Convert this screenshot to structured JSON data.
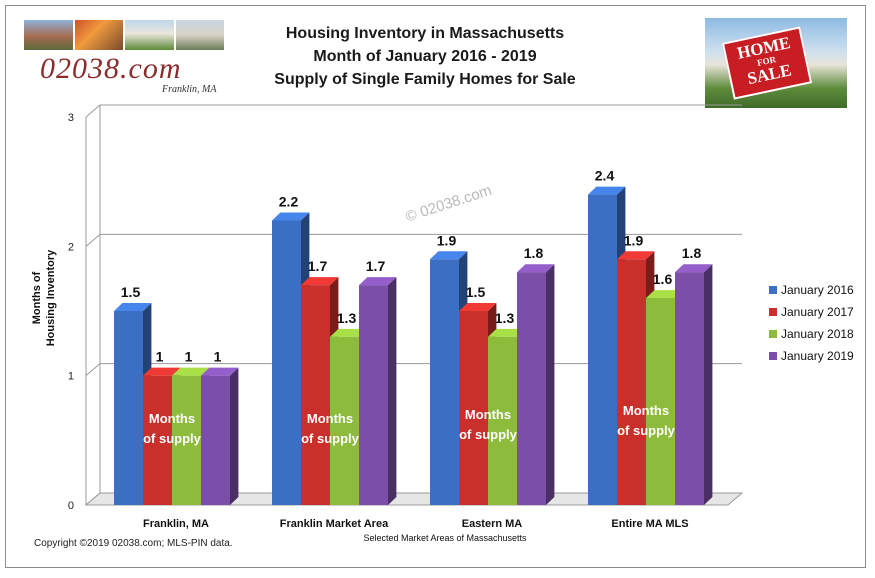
{
  "header": {
    "logo_text": "02038.com",
    "logo_subtitle": "Franklin, MA",
    "title_lines": [
      "Housing Inventory in Massachusetts",
      "Month of January  2016 - 2019",
      "Supply of Single Family Homes for Sale"
    ],
    "sign_top": "HOME",
    "sign_mid": "FOR",
    "sign_bottom": "SALE"
  },
  "footer": {
    "copyright": "Copyright  ©2019  02038.com;  MLS-PIN data."
  },
  "watermark": "© 02038.com",
  "bar_inner_label": [
    "Months",
    "of supply"
  ],
  "colors": {
    "January 2016": "#3a6fc4",
    "January 2017": "#c9302c",
    "January 2018": "#8dbb3c",
    "January 2019": "#7b4fa8"
  },
  "chart_data": {
    "type": "bar",
    "title": "Housing Inventory in Massachusetts",
    "xlabel": "Selected Market Areas of Massachusetts",
    "ylabel": "Months of Housing Inventory",
    "ylabel_lines": [
      "Months of",
      "Housing Inventory"
    ],
    "ylim": [
      0,
      3
    ],
    "yticks": [
      "0",
      "1",
      "2",
      "3"
    ],
    "grid": true,
    "legend_position": "right",
    "categories": [
      "Franklin, MA",
      "Franklin Market Area",
      "Eastern MA",
      "Entire MA MLS"
    ],
    "series": [
      {
        "name": "January 2016",
        "values": [
          1.5,
          2.2,
          1.9,
          2.4
        ]
      },
      {
        "name": "January 2017",
        "values": [
          1,
          1.7,
          1.5,
          1.9
        ]
      },
      {
        "name": "January 2018",
        "values": [
          1,
          1.3,
          1.3,
          1.6
        ]
      },
      {
        "name": "January 2019",
        "values": [
          1,
          1.7,
          1.8,
          1.8
        ]
      }
    ]
  }
}
